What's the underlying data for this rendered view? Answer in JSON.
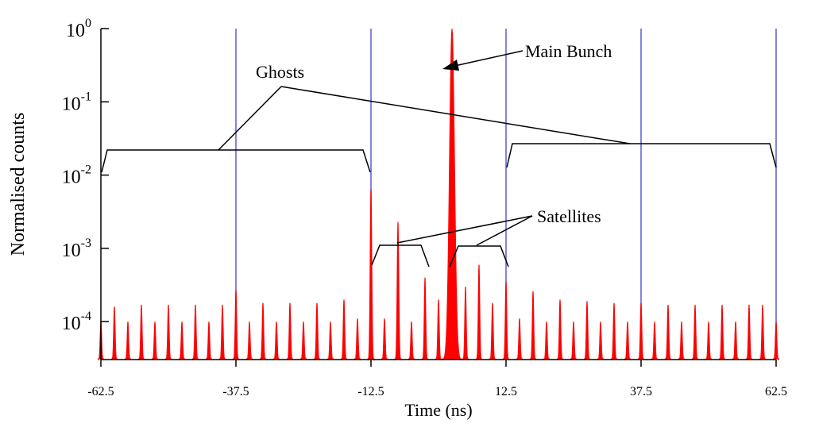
{
  "chart_data": {
    "type": "area",
    "xlabel": "Time (ns)",
    "ylabel": "Normalised counts",
    "xlim": [
      -62.5,
      62.5
    ],
    "ylim": [
      3e-05,
      1
    ],
    "yscale": "log",
    "x_ticks": [
      "-62.5",
      "-37.5",
      "-12.5",
      "12.5",
      "37.5",
      "62.5"
    ],
    "y_ticks": [
      {
        "value": 1,
        "mantissa": "10",
        "exp": "0"
      },
      {
        "value": 0.1,
        "mantissa": "10",
        "exp": "-1"
      },
      {
        "value": 0.01,
        "mantissa": "10",
        "exp": "-2"
      },
      {
        "value": 0.001,
        "mantissa": "10",
        "exp": "-3"
      },
      {
        "value": 0.0001,
        "mantissa": "10",
        "exp": "-4"
      }
    ],
    "vertical_lines_x": [
      -37.5,
      -12.5,
      12.5,
      37.5,
      62.5
    ],
    "vertical_line_color": "#5b5bd6",
    "fill_color": "#ff0000",
    "baseline": 3e-05,
    "peaks": [
      {
        "x": -62.5,
        "y": 0.0001
      },
      {
        "x": -60.0,
        "y": 0.00016
      },
      {
        "x": -57.5,
        "y": 0.0001
      },
      {
        "x": -55.0,
        "y": 0.00017
      },
      {
        "x": -52.5,
        "y": 0.0001
      },
      {
        "x": -50.0,
        "y": 0.00017
      },
      {
        "x": -47.5,
        "y": 0.0001
      },
      {
        "x": -45.0,
        "y": 0.00017
      },
      {
        "x": -42.5,
        "y": 0.0001
      },
      {
        "x": -40.0,
        "y": 0.00017
      },
      {
        "x": -37.5,
        "y": 0.00027
      },
      {
        "x": -35.0,
        "y": 0.0001
      },
      {
        "x": -32.5,
        "y": 0.00018
      },
      {
        "x": -30.0,
        "y": 0.0001
      },
      {
        "x": -27.5,
        "y": 0.00018
      },
      {
        "x": -25.0,
        "y": 0.0001
      },
      {
        "x": -22.5,
        "y": 0.00018
      },
      {
        "x": -20.0,
        "y": 0.0001
      },
      {
        "x": -17.5,
        "y": 0.0002
      },
      {
        "x": -15.0,
        "y": 0.00011
      },
      {
        "x": -12.5,
        "y": 0.0065
      },
      {
        "x": -10.0,
        "y": 0.00011
      },
      {
        "x": -7.5,
        "y": 0.0023
      },
      {
        "x": -5.0,
        "y": 0.0001
      },
      {
        "x": -2.5,
        "y": 0.0004
      },
      {
        "x": 0.0,
        "y": 0.0002
      },
      {
        "x": 2.5,
        "y": 1.0
      },
      {
        "x": 5.0,
        "y": 0.0003
      },
      {
        "x": 7.5,
        "y": 0.0006
      },
      {
        "x": 10.0,
        "y": 0.00018
      },
      {
        "x": 12.5,
        "y": 0.00035
      },
      {
        "x": 15.0,
        "y": 0.00011
      },
      {
        "x": 17.5,
        "y": 0.00026
      },
      {
        "x": 20.0,
        "y": 0.0001
      },
      {
        "x": 22.5,
        "y": 0.0002
      },
      {
        "x": 25.0,
        "y": 0.0001
      },
      {
        "x": 27.5,
        "y": 0.00019
      },
      {
        "x": 30.0,
        "y": 0.0001
      },
      {
        "x": 32.5,
        "y": 0.00018
      },
      {
        "x": 35.0,
        "y": 0.0001
      },
      {
        "x": 37.5,
        "y": 0.00018
      },
      {
        "x": 40.0,
        "y": 0.0001
      },
      {
        "x": 42.5,
        "y": 0.00017
      },
      {
        "x": 45.0,
        "y": 0.0001
      },
      {
        "x": 47.5,
        "y": 0.00017
      },
      {
        "x": 50.0,
        "y": 0.0001
      },
      {
        "x": 52.5,
        "y": 0.00017
      },
      {
        "x": 55.0,
        "y": 0.0001
      },
      {
        "x": 57.5,
        "y": 0.00017
      },
      {
        "x": 60.0,
        "y": 0.00017
      },
      {
        "x": 62.5,
        "y": 0.0001
      }
    ],
    "annotations": {
      "ghosts": "Ghosts",
      "main_bunch": "Main Bunch",
      "satellites": "Satellites"
    }
  }
}
